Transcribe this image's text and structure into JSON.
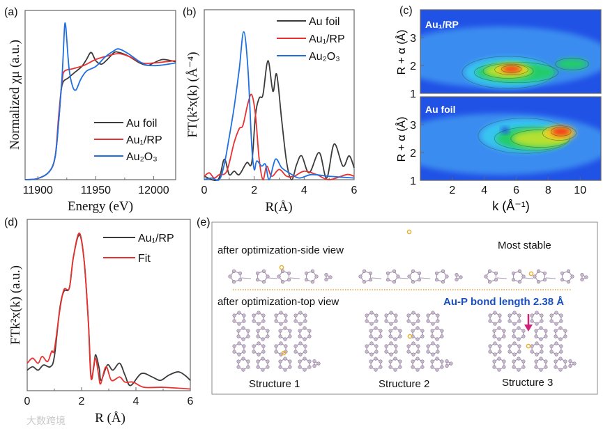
{
  "panel_labels": {
    "a": "(a)",
    "b": "(b)",
    "c": "(c)",
    "d": "(d)",
    "e": "(e)"
  },
  "colors": {
    "au_foil": "#3a3a3a",
    "au1_rp": "#e8312f",
    "au2o3": "#1f6fe0",
    "fit": "#e8312f",
    "bond_text": "#1a4fc0",
    "arrow": "#d0207a",
    "gold_atom": "#e8b030",
    "p_atom": "#b8a8c0"
  },
  "chart_data": [
    {
      "id": "a",
      "type": "line",
      "xlabel": "Energy (eV)",
      "ylabel": "Normalized χμ (a.u.)",
      "xlim": [
        11889,
        12019
      ],
      "ylim": [
        0,
        1.45
      ],
      "xticks": [
        11900,
        11950,
        12000
      ],
      "xtick_labels": [
        "11900",
        "11950",
        "12000"
      ],
      "legend_position": "bottom-right",
      "series": [
        {
          "name": "Au foil",
          "color_key": "au_foil",
          "x": [
            11889,
            11900,
            11910,
            11915,
            11918,
            11920,
            11922,
            11926,
            11932,
            11938,
            11942,
            11946,
            11950,
            11955,
            11960,
            11966,
            11970,
            11978,
            11988,
            11995,
            12000,
            12008,
            12019
          ],
          "y": [
            0,
            0.01,
            0.07,
            0.2,
            0.5,
            0.75,
            0.84,
            0.87,
            0.92,
            0.97,
            1.03,
            1.09,
            1.02,
            0.99,
            1.03,
            1.09,
            1.09,
            1.06,
            1.0,
            0.98,
            1.0,
            1.03,
            1.01
          ]
        },
        {
          "name": "Au₁/RP",
          "color_key": "au1_rp",
          "x": [
            11889,
            11900,
            11910,
            11915,
            11918,
            11921,
            11923,
            11930,
            11940,
            11950,
            11960,
            11970,
            11980,
            11990,
            12000,
            12010,
            12019
          ],
          "y": [
            0,
            0.01,
            0.07,
            0.2,
            0.55,
            0.85,
            0.93,
            0.95,
            0.98,
            1.03,
            1.06,
            1.08,
            1.05,
            1.0,
            1.0,
            1.01,
            1.02
          ]
        },
        {
          "name": "Au₂O₃",
          "color_key": "au2o3",
          "x": [
            11889,
            11900,
            11910,
            11915,
            11918,
            11921,
            11923,
            11924,
            11925,
            11927,
            11930,
            11933,
            11937,
            11942,
            11950,
            11958,
            11965,
            11970,
            11978,
            11988,
            11995,
            12005,
            12019
          ],
          "y": [
            0,
            0.01,
            0.07,
            0.2,
            0.5,
            0.9,
            1.3,
            1.32,
            1.2,
            0.95,
            0.8,
            0.77,
            0.86,
            0.93,
            0.97,
            1.05,
            1.1,
            1.12,
            1.08,
            1.01,
            0.98,
            0.98,
            1.0
          ]
        }
      ]
    },
    {
      "id": "b",
      "type": "line",
      "xlabel": "R(Å)",
      "ylabel": "FT(k²x(k) (Å⁻⁴)",
      "xlim": [
        0,
        6
      ],
      "ylim": [
        0,
        10
      ],
      "xticks": [
        0,
        2,
        4,
        6
      ],
      "xtick_labels": [
        "0",
        "2",
        "4",
        "6"
      ],
      "legend_position": "top-right",
      "series": [
        {
          "name": "Au foil",
          "color_key": "au_foil",
          "x": [
            0,
            0.55,
            0.8,
            1.0,
            1.2,
            1.4,
            1.7,
            1.9,
            2.05,
            2.2,
            2.35,
            2.55,
            2.75,
            2.9,
            3.1,
            3.3,
            3.5,
            3.7,
            3.9,
            4.2,
            4.6,
            4.9,
            5.2,
            5.55,
            5.8,
            6
          ],
          "y": [
            0.2,
            0,
            1.2,
            0.3,
            0.5,
            0.3,
            1.0,
            1.0,
            3.8,
            4.8,
            5.0,
            7.0,
            5.2,
            6.2,
            3.5,
            1.0,
            0,
            0.9,
            1.4,
            0.4,
            1.6,
            0.1,
            2.1,
            0.8,
            1.4,
            0.7
          ]
        },
        {
          "name": "Au₁/RP",
          "color_key": "au1_rp",
          "x": [
            0,
            0.2,
            0.4,
            0.6,
            0.9,
            1.2,
            1.4,
            1.55,
            1.75,
            1.9,
            2.05,
            2.2,
            2.35,
            2.5,
            2.7,
            3.0,
            3.3,
            3.6,
            4.0,
            4.5,
            5.0,
            5.7,
            6
          ],
          "y": [
            0.2,
            0.4,
            0.1,
            0.3,
            0.5,
            2.2,
            3.0,
            3.2,
            4.5,
            5.0,
            3.8,
            1.2,
            0,
            0.8,
            0.2,
            0.6,
            0.2,
            0.2,
            0.5,
            0.3,
            0,
            0.3,
            0.2
          ]
        },
        {
          "name": "Au₂O₃",
          "color_key": "au2o3",
          "x": [
            0,
            0.3,
            0.6,
            0.8,
            1.0,
            1.2,
            1.4,
            1.58,
            1.75,
            1.9,
            2.0,
            2.1,
            2.3,
            2.45,
            2.6,
            2.85,
            3.1,
            3.4,
            3.8,
            4.3,
            5.0,
            6
          ],
          "y": [
            0,
            0.1,
            0,
            0.9,
            2.5,
            4.3,
            6.5,
            8.7,
            6.5,
            2.0,
            0.6,
            1.1,
            0.8,
            0.9,
            0,
            1.2,
            0.7,
            0.4,
            0.1,
            0.3,
            0.2,
            0.1
          ]
        }
      ]
    },
    {
      "id": "c",
      "type": "heatmap",
      "xlabel": "k (Å⁻¹)",
      "ylabel": "R + α (Å)",
      "xlim": [
        0,
        11.3
      ],
      "ylim": [
        1,
        4
      ],
      "xticks": [
        2,
        4,
        6,
        8,
        10
      ],
      "xtick_labels": [
        "2",
        "4",
        "6",
        "8",
        "10"
      ],
      "yticks": [
        1,
        2,
        3
      ],
      "ytick_labels": [
        "1",
        "2",
        "3"
      ],
      "maps": [
        {
          "name": "Au₁/RP",
          "peaks": [
            {
              "k": 5.5,
              "R": 1.75,
              "wk": 5.5,
              "wR": 0.55,
              "level": 0.25
            },
            {
              "k": 6.0,
              "R": 1.75,
              "wk": 5.0,
              "wR": 0.35,
              "level": 0.45
            },
            {
              "k": 9.5,
              "R": 2.05,
              "wk": 2.0,
              "wR": 0.2,
              "level": 0.45
            },
            {
              "k": 5.5,
              "R": 1.8,
              "wk": 3.0,
              "wR": 0.25,
              "level": 0.65
            },
            {
              "k": 5.7,
              "R": 1.85,
              "wk": 2.0,
              "wR": 0.18,
              "level": 0.85
            },
            {
              "k": 5.7,
              "R": 1.87,
              "wk": 1.2,
              "wR": 0.12,
              "level": 1.0
            }
          ]
        },
        {
          "name": "Au foil",
          "peaks": [
            {
              "k": 6.5,
              "R": 2.6,
              "wk": 5.5,
              "wR": 0.6,
              "level": 0.25
            },
            {
              "k": 7.0,
              "R": 2.5,
              "wk": 4.5,
              "wR": 0.4,
              "level": 0.45
            },
            {
              "k": 7.5,
              "R": 2.5,
              "wk": 3.5,
              "wR": 0.3,
              "level": 0.65
            },
            {
              "k": 8.7,
              "R": 2.7,
              "wk": 2.0,
              "wR": 0.25,
              "level": 0.85
            },
            {
              "k": 8.8,
              "R": 2.75,
              "wk": 1.2,
              "wR": 0.15,
              "level": 1.0
            },
            {
              "k": 5.3,
              "R": 2.8,
              "wk": 0.5,
              "wR": 0.1,
              "level": 0.0
            }
          ]
        }
      ]
    },
    {
      "id": "d",
      "type": "line",
      "xlabel": "R (Å)",
      "ylabel": "FTk²x(k) (a.u.)",
      "xlim": [
        0,
        6
      ],
      "ylim": [
        0,
        10
      ],
      "xticks": [
        0,
        2,
        4,
        6
      ],
      "xtick_labels": [
        "0",
        "2",
        "4",
        "6"
      ],
      "legend_position": "top-right",
      "series": [
        {
          "name": "Au₁/RP",
          "color_key": "au_foil",
          "x": [
            0,
            0.2,
            0.4,
            0.6,
            0.85,
            1.0,
            1.2,
            1.35,
            1.55,
            1.7,
            1.92,
            2.1,
            2.25,
            2.35,
            2.45,
            2.52,
            2.65,
            2.72,
            2.95,
            3.15,
            3.4,
            3.6,
            3.8,
            4.2,
            4.6,
            4.9,
            5.2,
            5.55,
            5.8,
            6
          ],
          "y": [
            1.2,
            1.4,
            1.2,
            1.5,
            1.4,
            2.0,
            4.8,
            5.8,
            6.0,
            7.8,
            9.1,
            7.5,
            4.0,
            0.8,
            1.4,
            2.1,
            1.3,
            0.6,
            1.5,
            1.2,
            1.6,
            0.9,
            0.3,
            1.0,
            0.8,
            0.6,
            0.9,
            1.1,
            0.9,
            0.6
          ]
        },
        {
          "name": "Fit",
          "color_key": "fit",
          "x": [
            0,
            0.2,
            0.4,
            0.55,
            0.75,
            0.9,
            1.0,
            1.2,
            1.35,
            1.55,
            1.7,
            1.92,
            2.1,
            2.25,
            2.35,
            2.5,
            2.62,
            2.7,
            2.9,
            3.1,
            3.4,
            3.6,
            3.9,
            4.3,
            5,
            6
          ],
          "y": [
            1.6,
            1.9,
            1.6,
            2.0,
            1.7,
            2.3,
            2.4,
            4.7,
            5.9,
            6.0,
            7.8,
            9.2,
            7.5,
            4.0,
            0.7,
            1.9,
            1.0,
            0.4,
            1.4,
            0.6,
            0.8,
            0.5,
            0.5,
            0.2,
            0.2,
            0.1
          ]
        }
      ]
    }
  ],
  "panel_e": {
    "side_view_label": "after optimization-side view",
    "top_view_label": "after optimization-top view",
    "most_stable_label": "Most stable",
    "bond_label": "Au-P bond length 2.38 Å",
    "structures": [
      "Structure 1",
      "Structure 2",
      "Structure 3"
    ]
  },
  "watermark": "大数跨境"
}
